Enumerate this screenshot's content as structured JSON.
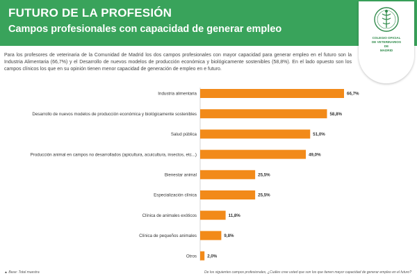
{
  "header": {
    "title": "FUTURO DE LA PROFESIÓN",
    "subtitle": "Campos profesionales con capacidad de generar empleo"
  },
  "logo": {
    "line1": "COLEGIO OFICIAL",
    "line2": "DE VETERINARIOS",
    "line3": "DE",
    "line4": "MADRID"
  },
  "intro": "Para los profesores de veterinaria de la Comunidad de Madrid los dos campos profesionales con mayor capacidad para generar empleo en el futuro son la Industria Alimentaria (66,7%) y el Desarrollo de nuevos modelos de producción económica y biológicamente sostenibles (58,8%). En el lado opuesto son los campos clínicos los que en su opinión tienen menor capacidad de generación de empleo en e futuro.",
  "colors": {
    "header": "#39a35b",
    "bar": "#f28a19"
  },
  "chart_data": {
    "type": "bar",
    "orientation": "horizontal",
    "categories": [
      "Industria alimentaria",
      "Desarrollo de nuevos modelos de producción económica y biológicamente sostenibles",
      "Salud pública",
      "Producción animal en campos no desarrollados (apicultura, acuicultura, insectos, etc...)",
      "Bienestar animal",
      "Especialización clínica",
      "Clínica de animales exóticos",
      "Clínica de pequeños animales",
      "Otros"
    ],
    "values": [
      66.7,
      58.8,
      51.0,
      49.0,
      25.5,
      25.5,
      11.8,
      9.8,
      2.0
    ],
    "value_labels": [
      "66,7%",
      "58,8%",
      "51,0%",
      "49,0%",
      "25,5%",
      "25,5%",
      "11,8%",
      "9,8%",
      "2,0%"
    ],
    "xlim": [
      0,
      70
    ],
    "grid": false
  },
  "footnote_left": "Base: Total muestra",
  "footnote_right": "De los siguientes campos profesionales, ¿Cuáles cree usted que son los que tienen mayor capacidad de generar empleo en el futuro?"
}
